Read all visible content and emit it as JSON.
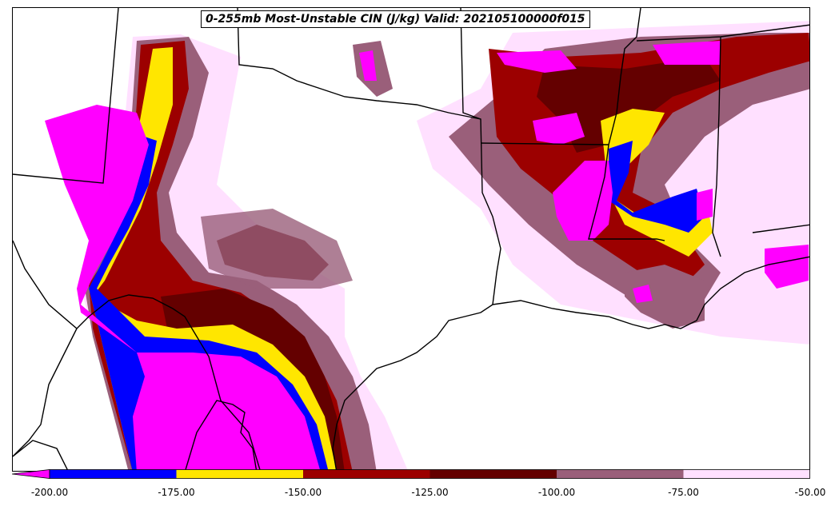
{
  "title": "0-255mb Most-Unstable CIN (J/kg) Valid: 202105100000f015",
  "colorbar": {
    "ticks": [
      "-200.00",
      "-175.00",
      "-150.00",
      "-125.00",
      "-100.00",
      "-75.00",
      "-50.00"
    ],
    "bins": [
      {
        "range": [
          -200,
          -175
        ],
        "color": "#0000ff"
      },
      {
        "range": [
          -175,
          -150
        ],
        "color": "#ffe600"
      },
      {
        "range": [
          -150,
          -125
        ],
        "color": "#9c0000"
      },
      {
        "range": [
          -125,
          -100
        ],
        "color": "#640000"
      },
      {
        "range": [
          -100,
          -75
        ],
        "color": "#9a5f7a"
      },
      {
        "range": [
          -75,
          -50
        ],
        "color": "#ffe0ff"
      }
    ],
    "under_color": "#ff00ff"
  },
  "colors": {
    "magenta": "#ff00ff",
    "blue": "#0000ff",
    "yellow": "#ffe600",
    "red": "#9c0000",
    "darkred": "#640000",
    "mauve": "#9a5f7a",
    "pink": "#ffe0ff"
  }
}
